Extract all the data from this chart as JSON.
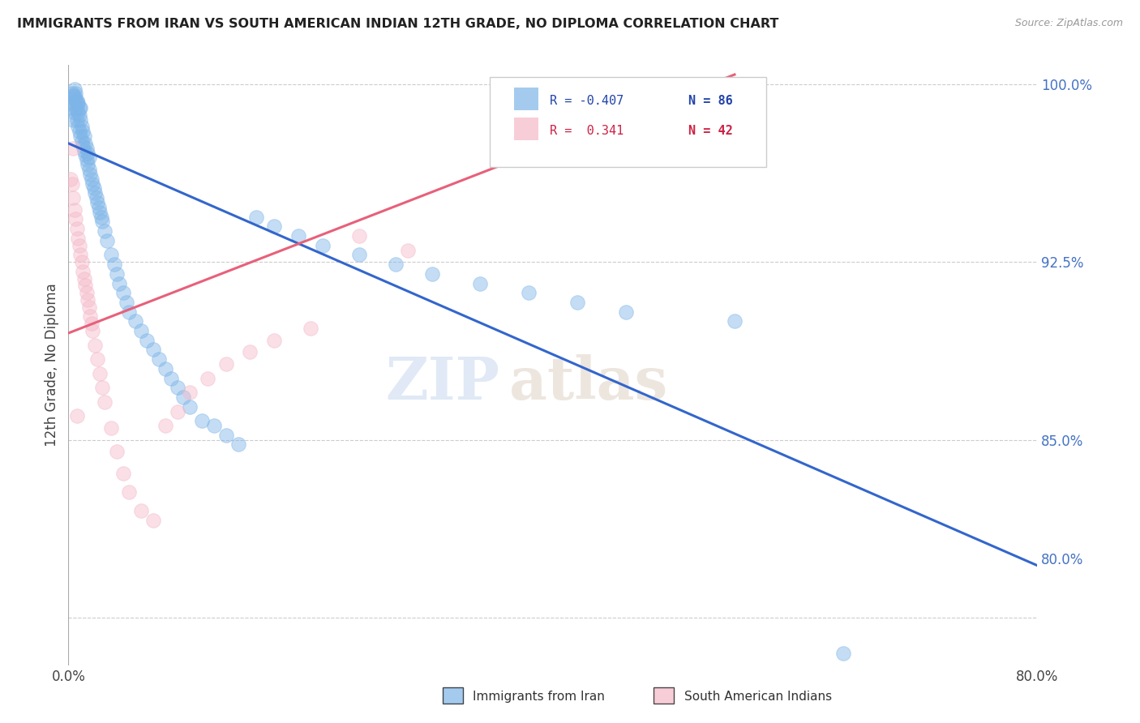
{
  "title": "IMMIGRANTS FROM IRAN VS SOUTH AMERICAN INDIAN 12TH GRADE, NO DIPLOMA CORRELATION CHART",
  "source": "Source: ZipAtlas.com",
  "ylabel": "12th Grade, No Diploma",
  "blue_color": "#7eb5e8",
  "pink_color": "#f4b8c8",
  "blue_line_color": "#3366cc",
  "pink_line_color": "#e8607a",
  "watermark_zip": "ZIP",
  "watermark_atlas": "atlas",
  "legend_r1": "R = -0.407",
  "legend_n1": "N = 86",
  "legend_r2": "R =  0.341",
  "legend_n2": "N = 42",
  "x_min": 0.0,
  "x_max": 0.8,
  "y_min": 0.755,
  "y_max": 1.008,
  "blue_line_x0": 0.0,
  "blue_line_y0": 0.975,
  "blue_line_x1": 0.8,
  "blue_line_y1": 0.797,
  "pink_line_x0": 0.0,
  "pink_line_y0": 0.895,
  "pink_line_x1": 0.55,
  "pink_line_y1": 1.004,
  "blue_x": [
    0.002,
    0.003,
    0.004,
    0.004,
    0.005,
    0.005,
    0.005,
    0.006,
    0.006,
    0.006,
    0.007,
    0.007,
    0.007,
    0.008,
    0.008,
    0.008,
    0.009,
    0.009,
    0.01,
    0.01,
    0.01,
    0.011,
    0.011,
    0.012,
    0.012,
    0.013,
    0.013,
    0.014,
    0.014,
    0.015,
    0.015,
    0.016,
    0.016,
    0.017,
    0.017,
    0.018,
    0.019,
    0.02,
    0.021,
    0.022,
    0.023,
    0.024,
    0.025,
    0.026,
    0.027,
    0.028,
    0.03,
    0.032,
    0.035,
    0.038,
    0.04,
    0.042,
    0.045,
    0.048,
    0.05,
    0.055,
    0.06,
    0.065,
    0.07,
    0.075,
    0.08,
    0.085,
    0.09,
    0.095,
    0.1,
    0.11,
    0.12,
    0.13,
    0.14,
    0.155,
    0.17,
    0.19,
    0.21,
    0.24,
    0.27,
    0.3,
    0.34,
    0.38,
    0.42,
    0.46,
    0.55,
    0.003,
    0.005,
    0.007,
    0.009,
    0.64
  ],
  "blue_y": [
    0.99,
    0.992,
    0.985,
    0.995,
    0.988,
    0.995,
    0.998,
    0.99,
    0.993,
    0.996,
    0.985,
    0.99,
    0.993,
    0.982,
    0.988,
    0.992,
    0.98,
    0.987,
    0.978,
    0.985,
    0.99,
    0.976,
    0.982,
    0.974,
    0.98,
    0.972,
    0.978,
    0.97,
    0.975,
    0.968,
    0.973,
    0.966,
    0.971,
    0.964,
    0.969,
    0.962,
    0.96,
    0.958,
    0.956,
    0.954,
    0.952,
    0.95,
    0.948,
    0.946,
    0.944,
    0.942,
    0.938,
    0.934,
    0.928,
    0.924,
    0.92,
    0.916,
    0.912,
    0.908,
    0.904,
    0.9,
    0.896,
    0.892,
    0.888,
    0.884,
    0.88,
    0.876,
    0.872,
    0.868,
    0.864,
    0.858,
    0.856,
    0.852,
    0.848,
    0.944,
    0.94,
    0.936,
    0.932,
    0.928,
    0.924,
    0.92,
    0.916,
    0.912,
    0.908,
    0.904,
    0.9,
    0.996,
    0.994,
    0.992,
    0.99,
    0.76
  ],
  "pink_x": [
    0.002,
    0.003,
    0.004,
    0.005,
    0.006,
    0.007,
    0.008,
    0.009,
    0.01,
    0.011,
    0.012,
    0.013,
    0.014,
    0.015,
    0.016,
    0.017,
    0.018,
    0.019,
    0.02,
    0.022,
    0.024,
    0.026,
    0.028,
    0.03,
    0.035,
    0.04,
    0.045,
    0.05,
    0.06,
    0.07,
    0.08,
    0.09,
    0.1,
    0.115,
    0.13,
    0.15,
    0.17,
    0.2,
    0.24,
    0.28,
    0.004,
    0.007
  ],
  "pink_y": [
    0.96,
    0.958,
    0.952,
    0.947,
    0.943,
    0.939,
    0.935,
    0.932,
    0.928,
    0.925,
    0.921,
    0.918,
    0.915,
    0.912,
    0.909,
    0.906,
    0.902,
    0.899,
    0.896,
    0.89,
    0.884,
    0.878,
    0.872,
    0.866,
    0.855,
    0.845,
    0.836,
    0.828,
    0.82,
    0.816,
    0.856,
    0.862,
    0.87,
    0.876,
    0.882,
    0.887,
    0.892,
    0.897,
    0.936,
    0.93,
    0.973,
    0.86
  ]
}
